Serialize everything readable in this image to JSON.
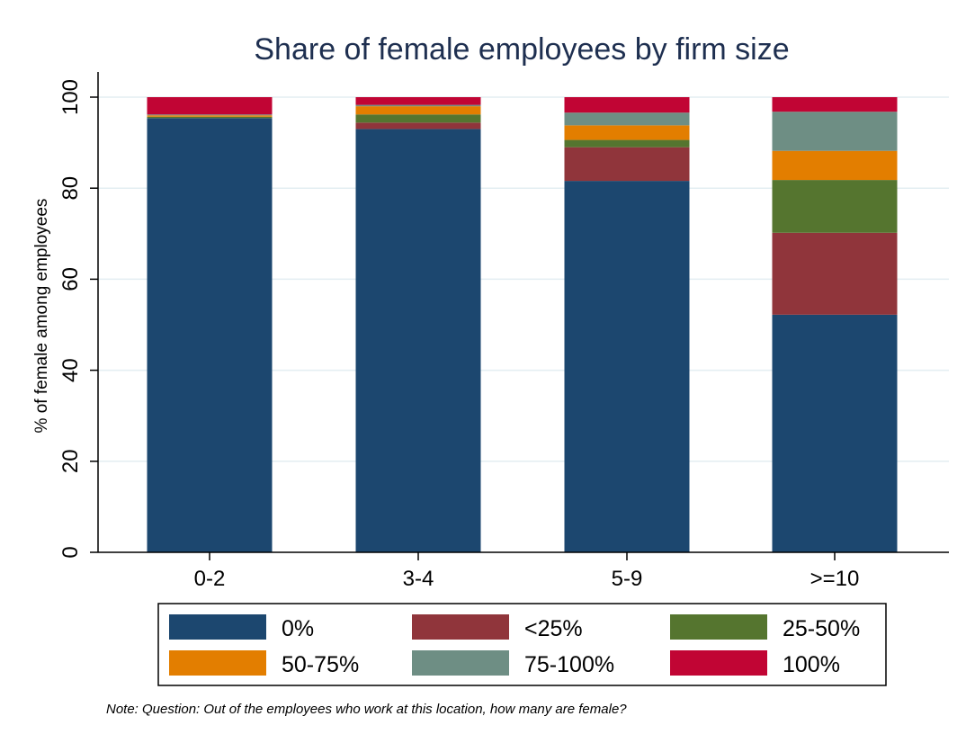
{
  "chart_data": {
    "type": "bar",
    "stacked": true,
    "title": "Share of female employees by firm size",
    "xlabel": "",
    "ylabel": "% of female among employees",
    "ylim": [
      0,
      100
    ],
    "yticks": [
      0,
      20,
      40,
      60,
      80,
      100
    ],
    "grid": true,
    "legend_position": "bottom",
    "categories": [
      "0-2",
      "3-4",
      "5-9",
      ">=10"
    ],
    "series": [
      {
        "name": "0%",
        "color": "#1c476f",
        "values": [
          95.4,
          93.0,
          81.6,
          52.2
        ]
      },
      {
        "name": "<25%",
        "color": "#90353b",
        "values": [
          0.0,
          1.4,
          7.4,
          18.0
        ]
      },
      {
        "name": "25-50%",
        "color": "#55752f",
        "values": [
          0.3,
          1.8,
          1.6,
          11.6
        ]
      },
      {
        "name": "50-75%",
        "color": "#e37e00",
        "values": [
          0.3,
          1.8,
          3.2,
          6.4
        ]
      },
      {
        "name": "75-100%",
        "color": "#6e8e84",
        "values": [
          0.2,
          0.3,
          2.8,
          8.6
        ]
      },
      {
        "name": "100%",
        "color": "#c10534",
        "values": [
          3.8,
          1.7,
          3.4,
          3.2
        ]
      }
    ],
    "note": "Note: Question: Out of the employees who work at this location, how many are female?"
  },
  "colors": {
    "title": "#1e2f50",
    "axis": "#000000",
    "grid": "#e3eef2"
  }
}
